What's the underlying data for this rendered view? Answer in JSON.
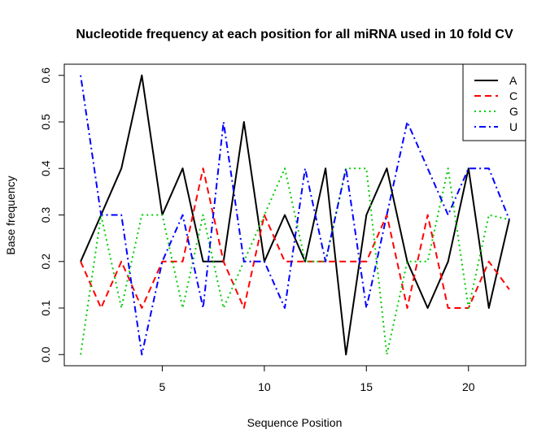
{
  "chart_data": {
    "type": "line",
    "title": "Nucleotide frequency at each position for all miRNA used in 10 fold CV",
    "xlabel": "Sequence Position",
    "ylabel": "Base frequency",
    "xlim": [
      0.2,
      22.8
    ],
    "ylim": [
      -0.024,
      0.624
    ],
    "x_ticks": [
      "5",
      "10",
      "15",
      "20"
    ],
    "y_ticks": [
      "0.0",
      "0.1",
      "0.2",
      "0.3",
      "0.4",
      "0.5",
      "0.6"
    ],
    "legend_position": "top-right",
    "x": [
      1,
      2,
      3,
      4,
      5,
      6,
      7,
      8,
      9,
      10,
      11,
      12,
      13,
      14,
      15,
      16,
      17,
      18,
      19,
      20,
      21,
      22
    ],
    "series": [
      {
        "name": "A",
        "color": "#000000",
        "dash": "solid",
        "values": [
          0.2,
          0.3,
          0.4,
          0.6,
          0.3,
          0.4,
          0.2,
          0.2,
          0.5,
          0.2,
          0.3,
          0.2,
          0.4,
          0.0,
          0.3,
          0.4,
          0.2,
          0.1,
          0.2,
          0.4,
          0.1,
          0.29
        ]
      },
      {
        "name": "C",
        "color": "#ff0000",
        "dash": "dashed",
        "values": [
          0.2,
          0.1,
          0.2,
          0.1,
          0.2,
          0.2,
          0.4,
          0.2,
          0.1,
          0.3,
          0.2,
          0.2,
          0.2,
          0.2,
          0.2,
          0.3,
          0.1,
          0.3,
          0.1,
          0.1,
          0.2,
          0.14
        ]
      },
      {
        "name": "G",
        "color": "#00cd00",
        "dash": "dotted",
        "values": [
          0.0,
          0.3,
          0.1,
          0.3,
          0.3,
          0.1,
          0.3,
          0.1,
          0.2,
          0.3,
          0.4,
          0.2,
          0.2,
          0.4,
          0.4,
          0.0,
          0.2,
          0.2,
          0.4,
          0.1,
          0.3,
          0.29
        ]
      },
      {
        "name": "U",
        "color": "#0000ff",
        "dash": "dotdash",
        "values": [
          0.6,
          0.3,
          0.3,
          0.0,
          0.2,
          0.3,
          0.1,
          0.5,
          0.2,
          0.2,
          0.1,
          0.4,
          0.2,
          0.4,
          0.1,
          0.3,
          0.5,
          0.4,
          0.3,
          0.4,
          0.4,
          0.29
        ]
      }
    ]
  }
}
